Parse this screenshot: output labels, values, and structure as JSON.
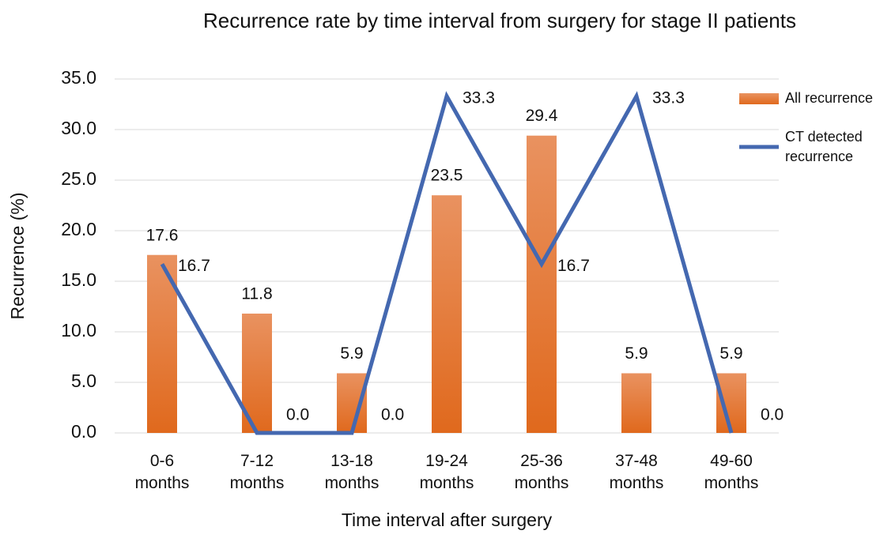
{
  "chart_data": {
    "type": "bar_line",
    "title": "Recurrence rate by time interval from surgery for stage II patients",
    "x_label": "Time interval after surgery",
    "y_label": "Recurrence (%)",
    "categories": [
      "0-6 months",
      "7-12 months",
      "13-18 months",
      "19-24 months",
      "25-36 months",
      "37-48 months",
      "49-60 months"
    ],
    "series": [
      {
        "name": "All recurrence",
        "type": "bar",
        "color": "#e8711f",
        "values": [
          17.6,
          11.8,
          5.9,
          23.5,
          29.4,
          5.9,
          5.9
        ]
      },
      {
        "name": "CT detected recurrence",
        "type": "line",
        "color": "#4468b0",
        "values": [
          16.7,
          0,
          0,
          33.3,
          16.7,
          33.3,
          0
        ],
        "value_labels": [
          "16.7",
          "0.0",
          "0.0",
          "33.3",
          "16.7",
          "33.3",
          "0.0"
        ]
      }
    ],
    "ylim": [
      0,
      35
    ],
    "yticks": [
      {
        "value": 0,
        "label": "0.0"
      },
      {
        "value": 5,
        "label": "5.0"
      },
      {
        "value": 10,
        "label": "10.0"
      },
      {
        "value": 15,
        "label": "15.0"
      },
      {
        "value": 20,
        "label": "20.0"
      },
      {
        "value": 25,
        "label": "25.0"
      },
      {
        "value": 30,
        "label": "30.0"
      },
      {
        "value": 35,
        "label": "35.0"
      }
    ],
    "grid": true,
    "legend": "right"
  }
}
